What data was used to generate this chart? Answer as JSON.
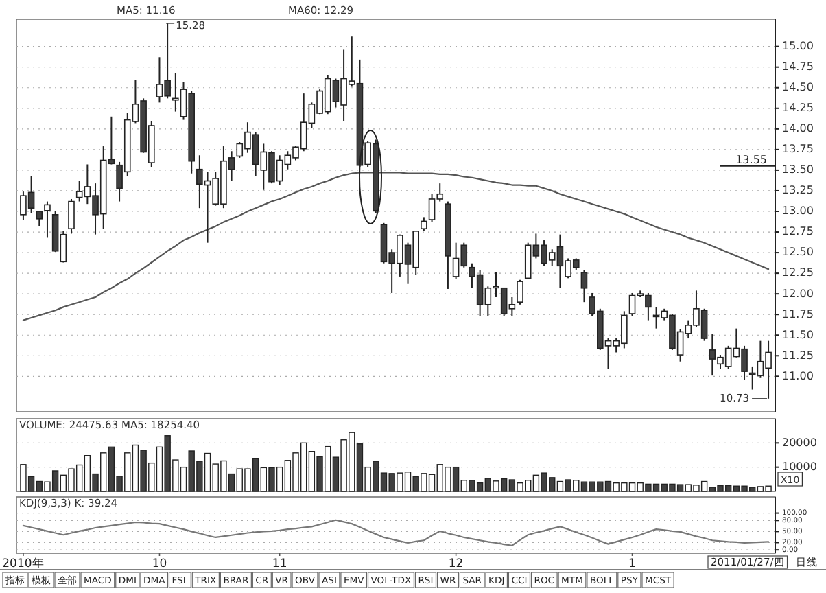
{
  "chart_data": [
    {
      "type": "candlestick",
      "categories": [
        null,
        null,
        null,
        null,
        null,
        null,
        null,
        null,
        null,
        null,
        null,
        null,
        null,
        null,
        null,
        null,
        null,
        null,
        null,
        null,
        null,
        null,
        null,
        null,
        null,
        null,
        null,
        null,
        null,
        null,
        null,
        null,
        null,
        null,
        null,
        null,
        null,
        null,
        null,
        null,
        null,
        null,
        null,
        null,
        null,
        null,
        null,
        null,
        null,
        null,
        null,
        null,
        null,
        null,
        null,
        null,
        null,
        null,
        null,
        null,
        null,
        null,
        null,
        null,
        null,
        null,
        null,
        null,
        null,
        null,
        null,
        null,
        null,
        null,
        null,
        null,
        null,
        null,
        null,
        null,
        null,
        null,
        null,
        null,
        null,
        null,
        null,
        null,
        null,
        null,
        null,
        null,
        null,
        null
      ],
      "ohlc": [
        [
          12.96,
          13.24,
          12.9,
          13.19
        ],
        [
          13.23,
          13.43,
          12.98,
          13.04
        ],
        [
          13.0,
          13.0,
          12.82,
          12.91
        ],
        [
          13.01,
          13.12,
          12.68,
          13.08
        ],
        [
          12.96,
          13.0,
          12.51,
          12.52
        ],
        [
          12.39,
          12.76,
          12.38,
          12.72
        ],
        [
          12.79,
          13.15,
          12.73,
          13.12
        ],
        [
          13.17,
          13.37,
          13.12,
          13.24
        ],
        [
          13.18,
          13.57,
          13.09,
          13.3
        ],
        [
          13.19,
          13.34,
          12.72,
          12.96
        ],
        [
          12.97,
          13.79,
          12.79,
          13.62
        ],
        [
          13.63,
          14.15,
          13.57,
          13.58
        ],
        [
          13.56,
          13.6,
          13.12,
          13.28
        ],
        [
          13.48,
          14.19,
          13.43,
          14.11
        ],
        [
          14.09,
          14.59,
          14.07,
          14.3
        ],
        [
          14.34,
          14.37,
          13.71,
          13.72
        ],
        [
          13.59,
          14.09,
          13.54,
          14.04
        ],
        [
          14.39,
          14.87,
          14.32,
          14.54
        ],
        [
          14.59,
          15.28,
          14.37,
          14.4
        ],
        [
          14.35,
          14.68,
          14.21,
          14.37
        ],
        [
          14.15,
          14.57,
          14.11,
          14.48
        ],
        [
          14.43,
          14.46,
          13.46,
          13.61
        ],
        [
          13.51,
          13.68,
          13.04,
          13.33
        ],
        [
          13.32,
          13.48,
          12.62,
          13.37
        ],
        [
          13.09,
          13.48,
          13.07,
          13.4
        ],
        [
          13.09,
          13.79,
          13.04,
          13.61
        ],
        [
          13.65,
          13.73,
          13.37,
          13.51
        ],
        [
          13.67,
          13.84,
          13.65,
          13.82
        ],
        [
          13.76,
          14.08,
          13.71,
          13.96
        ],
        [
          13.93,
          13.96,
          13.43,
          13.57
        ],
        [
          13.5,
          13.82,
          13.26,
          13.72
        ],
        [
          13.71,
          13.73,
          13.34,
          13.36
        ],
        [
          13.37,
          13.68,
          13.32,
          13.62
        ],
        [
          13.57,
          13.73,
          13.51,
          13.68
        ],
        [
          13.65,
          13.79,
          13.62,
          13.78
        ],
        [
          13.76,
          14.43,
          13.73,
          14.08
        ],
        [
          14.07,
          14.32,
          14.01,
          14.3
        ],
        [
          14.19,
          14.48,
          14.18,
          14.46
        ],
        [
          14.21,
          14.65,
          14.18,
          14.61
        ],
        [
          14.59,
          14.61,
          14.26,
          14.33
        ],
        [
          14.29,
          14.96,
          14.09,
          14.61
        ],
        [
          14.54,
          15.12,
          14.51,
          14.58
        ],
        [
          14.55,
          14.84,
          13.54,
          13.56
        ],
        [
          13.57,
          13.85,
          13.54,
          13.83
        ],
        [
          13.82,
          13.87,
          12.98,
          13.01
        ],
        [
          12.84,
          12.86,
          12.37,
          12.39
        ],
        [
          12.5,
          12.54,
          12.01,
          12.37
        ],
        [
          12.37,
          12.72,
          12.21,
          12.71
        ],
        [
          12.59,
          12.62,
          12.12,
          12.36
        ],
        [
          12.32,
          12.76,
          12.23,
          12.76
        ],
        [
          12.79,
          12.93,
          12.76,
          12.88
        ],
        [
          12.9,
          13.21,
          12.87,
          13.15
        ],
        [
          13.15,
          13.34,
          13.12,
          13.21
        ],
        [
          13.09,
          13.12,
          12.06,
          12.46
        ],
        [
          12.21,
          12.62,
          12.18,
          12.43
        ],
        [
          12.59,
          12.62,
          12.32,
          12.34
        ],
        [
          12.32,
          12.37,
          12.07,
          12.21
        ],
        [
          12.23,
          12.29,
          11.73,
          11.87
        ],
        [
          11.87,
          12.09,
          11.73,
          12.07
        ],
        [
          12.08,
          12.26,
          11.96,
          12.09
        ],
        [
          12.07,
          12.07,
          11.73,
          11.76
        ],
        [
          11.82,
          11.96,
          11.73,
          11.87
        ],
        [
          11.9,
          12.17,
          11.87,
          12.15
        ],
        [
          12.19,
          12.62,
          12.18,
          12.59
        ],
        [
          12.59,
          12.73,
          12.43,
          12.46
        ],
        [
          12.59,
          12.65,
          12.34,
          12.37
        ],
        [
          12.41,
          12.54,
          12.34,
          12.5
        ],
        [
          12.57,
          12.72,
          12.07,
          12.34
        ],
        [
          12.21,
          12.43,
          12.19,
          12.4
        ],
        [
          12.41,
          12.43,
          12.29,
          12.32
        ],
        [
          12.26,
          12.29,
          11.9,
          12.07
        ],
        [
          11.96,
          12.01,
          11.73,
          11.76
        ],
        [
          11.79,
          11.82,
          11.32,
          11.34
        ],
        [
          11.37,
          11.46,
          11.09,
          11.43
        ],
        [
          11.37,
          11.46,
          11.29,
          11.43
        ],
        [
          11.4,
          11.79,
          11.34,
          11.74
        ],
        [
          11.76,
          12.01,
          11.73,
          11.98
        ],
        [
          11.98,
          12.04,
          11.96,
          12.0
        ],
        [
          11.98,
          12.01,
          11.68,
          11.84
        ],
        [
          11.74,
          11.84,
          11.58,
          11.73
        ],
        [
          11.71,
          11.82,
          11.68,
          11.79
        ],
        [
          11.74,
          11.76,
          11.32,
          11.34
        ],
        [
          11.26,
          11.57,
          11.18,
          11.54
        ],
        [
          11.52,
          11.68,
          11.46,
          11.62
        ],
        [
          11.62,
          12.04,
          11.6,
          11.82
        ],
        [
          11.8,
          11.82,
          11.43,
          11.46
        ],
        [
          11.32,
          11.51,
          11.01,
          11.21
        ],
        [
          11.15,
          11.26,
          11.09,
          11.23
        ],
        [
          11.12,
          11.37,
          11.09,
          11.34
        ],
        [
          11.24,
          11.58,
          11.23,
          11.34
        ],
        [
          11.33,
          11.37,
          10.96,
          11.06
        ],
        [
          11.04,
          11.12,
          10.84,
          11.02
        ],
        [
          11.01,
          11.43,
          10.98,
          11.18
        ],
        [
          11.1,
          11.43,
          10.73,
          11.29
        ]
      ],
      "series": [
        {
          "type": "line",
          "color": "#555555",
          "values": [
            11.68,
            11.71,
            11.74,
            11.77,
            11.8,
            11.84,
            11.87,
            11.9,
            11.93,
            11.96,
            12.02,
            12.07,
            12.13,
            12.18,
            12.25,
            12.31,
            12.38,
            12.45,
            12.52,
            12.58,
            12.65,
            12.69,
            12.74,
            12.78,
            12.82,
            12.87,
            12.91,
            12.95,
            13.0,
            13.04,
            13.08,
            13.12,
            13.15,
            13.19,
            13.23,
            13.27,
            13.3,
            13.34,
            13.37,
            13.41,
            13.44,
            13.46,
            13.47,
            13.47,
            13.47,
            13.47,
            13.47,
            13.47,
            13.46,
            13.46,
            13.46,
            13.46,
            13.45,
            13.45,
            13.44,
            13.42,
            13.41,
            13.39,
            13.37,
            13.35,
            13.34,
            13.32,
            13.32,
            13.31,
            13.31,
            13.28,
            13.25,
            13.21,
            13.18,
            13.15,
            13.12,
            13.09,
            13.06,
            13.03,
            13.0,
            12.97,
            12.93,
            12.89,
            12.85,
            12.81,
            12.78,
            12.75,
            12.72,
            12.68,
            12.65,
            12.62,
            12.58,
            12.54,
            12.5,
            12.46,
            12.42,
            12.38,
            12.34,
            12.3
          ]
        }
      ],
      "ylim": [
        10.57,
        15.33
      ],
      "yticks": [
        {
          "value": 11,
          "label": "11.00"
        },
        {
          "value": 11.25,
          "label": "11.25"
        },
        {
          "value": 11.5,
          "label": "11.50"
        },
        {
          "value": 11.75,
          "label": "11.75"
        },
        {
          "value": 12,
          "label": "12.00"
        },
        {
          "value": 12.25,
          "label": "12.25"
        },
        {
          "value": 12.5,
          "label": "12.50"
        },
        {
          "value": 12.75,
          "label": "12.75"
        },
        {
          "value": 13,
          "label": "13.00"
        },
        {
          "value": 13.25,
          "label": "13.25"
        },
        {
          "value": 13.5,
          "label": "13.50"
        },
        {
          "value": 13.75,
          "label": "13.75"
        },
        {
          "value": 14,
          "label": "14.00"
        },
        {
          "value": 14.25,
          "label": "14.25"
        },
        {
          "value": 14.5,
          "label": "14.50"
        },
        {
          "value": 14.75,
          "label": "14.75"
        },
        {
          "value": 15,
          "label": "15.00"
        }
      ],
      "grid": "y",
      "tick_labels": "y",
      "ref_lines": [
        {
          "axis": "y",
          "value": 13.55,
          "label": "13.55"
        }
      ],
      "annotations": [
        "MA5: 11.16",
        "MA60: 12.29",
        "15.28",
        "10.73"
      ]
    },
    {
      "type": "bar",
      "title": "VOLUME: 24475.63  MA5: 18254.40",
      "categories": [
        null,
        null,
        null,
        null,
        null,
        null,
        null,
        null,
        null,
        null,
        null,
        null,
        null,
        null,
        null,
        null,
        null,
        null,
        null,
        null,
        null,
        null,
        null,
        null,
        null,
        null,
        null,
        null,
        null,
        null,
        null,
        null,
        null,
        null,
        null,
        null,
        null,
        null,
        null,
        null,
        null,
        null,
        null,
        null,
        null,
        null,
        null,
        null,
        null,
        null,
        null,
        null,
        null,
        null,
        null,
        null,
        null,
        null,
        null,
        null,
        null,
        null,
        null,
        null,
        null,
        null,
        null,
        null,
        null,
        null,
        null,
        null,
        null,
        null,
        null,
        null,
        null,
        null,
        null,
        null,
        null,
        null,
        null,
        null,
        null,
        null,
        null,
        null,
        null,
        null,
        null,
        null,
        null,
        null
      ],
      "values": [
        11100,
        6100,
        4100,
        3900,
        8500,
        6700,
        9300,
        10900,
        14800,
        7200,
        15900,
        18300,
        6300,
        15900,
        19100,
        17000,
        11700,
        18300,
        23000,
        13000,
        10000,
        16700,
        12400,
        15700,
        11300,
        12600,
        7200,
        9300,
        9300,
        13500,
        9800,
        9800,
        10000,
        12800,
        15900,
        20000,
        16500,
        14300,
        18500,
        14100,
        21300,
        24300,
        19600,
        10000,
        12400,
        7600,
        7400,
        7600,
        8000,
        6100,
        7400,
        7000,
        11100,
        10000,
        10000,
        4600,
        4600,
        3500,
        5400,
        4300,
        5200,
        4800,
        3500,
        4600,
        6700,
        7600,
        5700,
        4100,
        4800,
        4600,
        3900,
        3900,
        3900,
        4100,
        3500,
        3500,
        3500,
        3500,
        3000,
        3000,
        3000,
        3000,
        2800,
        2800,
        2600,
        4100,
        1700,
        2400,
        2400,
        2200,
        2200,
        1700,
        2000,
        2200
      ],
      "colors": [
        "#ffffff",
        "#404040",
        "#404040",
        "#ffffff",
        "#404040",
        "#ffffff",
        "#ffffff",
        "#ffffff",
        "#ffffff",
        "#404040",
        "#ffffff",
        "#404040",
        "#404040",
        "#ffffff",
        "#ffffff",
        "#404040",
        "#ffffff",
        "#ffffff",
        "#404040",
        "#ffffff",
        "#ffffff",
        "#404040",
        "#404040",
        "#ffffff",
        "#ffffff",
        "#ffffff",
        "#404040",
        "#ffffff",
        "#ffffff",
        "#404040",
        "#ffffff",
        "#404040",
        "#ffffff",
        "#ffffff",
        "#ffffff",
        "#ffffff",
        "#ffffff",
        "#404040",
        "#ffffff",
        "#404040",
        "#ffffff",
        "#ffffff",
        "#404040",
        "#ffffff",
        "#404040",
        "#404040",
        "#404040",
        "#ffffff",
        "#ffffff",
        "#404040",
        "#ffffff",
        "#ffffff",
        "#ffffff",
        "#ffffff",
        "#404040",
        "#ffffff",
        "#404040",
        "#404040",
        "#404040",
        "#ffffff",
        "#404040",
        "#404040",
        "#ffffff",
        "#ffffff",
        "#ffffff",
        "#404040",
        "#404040",
        "#ffffff",
        "#404040",
        "#ffffff",
        "#404040",
        "#404040",
        "#404040",
        "#404040",
        "#ffffff",
        "#ffffff",
        "#ffffff",
        "#ffffff",
        "#404040",
        "#404040",
        "#404040",
        "#404040",
        "#404040",
        "#ffffff",
        "#ffffff",
        "#ffffff",
        "#404040",
        "#404040",
        "#404040",
        "#404040",
        "#404040",
        "#404040",
        "#ffffff",
        "#ffffff"
      ],
      "ylim": [
        0,
        30000
      ],
      "yticks": [
        10000,
        20000
      ],
      "grid": "y",
      "tick_labels": "y",
      "annotations": [
        "X10"
      ]
    },
    {
      "type": "line",
      "title": "KDJ(9,3,3) K: 39.24",
      "categories": [
        "2010年",
        null,
        null,
        null,
        null,
        null,
        null,
        null,
        null,
        null,
        null,
        null,
        null,
        null,
        null,
        null,
        null,
        "10",
        null,
        null,
        null,
        null,
        null,
        null,
        null,
        null,
        null,
        null,
        null,
        null,
        null,
        null,
        "11",
        null,
        null,
        null,
        null,
        null,
        null,
        null,
        null,
        null,
        null,
        null,
        null,
        null,
        null,
        null,
        null,
        null,
        null,
        null,
        null,
        null,
        "12",
        null,
        null,
        null,
        null,
        null,
        null,
        null,
        null,
        null,
        null,
        null,
        null,
        null,
        null,
        null,
        null,
        null,
        null,
        null,
        null,
        null,
        "1",
        null,
        null,
        null,
        null,
        null,
        null,
        null,
        null,
        null,
        null,
        null,
        null,
        null,
        null,
        null,
        null,
        null
      ],
      "series": [
        {
          "color": "#777777",
          "values": [
            66,
            61,
            56,
            51,
            46,
            41,
            46,
            51,
            55,
            60,
            63,
            66,
            69,
            72,
            75,
            74,
            72,
            71,
            66,
            61,
            56,
            50,
            45,
            39,
            34,
            37,
            40,
            43,
            46,
            48,
            50,
            51,
            53,
            56,
            58,
            61,
            63,
            69,
            75,
            81,
            76,
            71,
            62,
            52,
            43,
            34,
            29,
            24,
            19,
            23,
            26,
            39,
            51,
            45,
            40,
            34,
            30,
            26,
            22,
            19,
            15,
            12,
            27,
            41,
            47,
            52,
            58,
            63,
            56,
            48,
            41,
            33,
            24,
            16,
            22,
            28,
            34,
            41,
            49,
            56,
            54,
            51,
            49,
            43,
            37,
            32,
            26,
            24,
            22,
            21,
            19,
            20,
            21,
            22
          ]
        }
      ],
      "ylim": [
        -9,
        144
      ],
      "yticks": [
        {
          "value": 0,
          "label": "0.00"
        },
        {
          "value": 20,
          "label": "20.00"
        },
        {
          "value": 50,
          "label": "50.00"
        },
        {
          "value": 80,
          "label": "80.00"
        },
        {
          "value": 100,
          "label": "100.00"
        }
      ],
      "grid": "y",
      "annotations": [
        "2011/01/27/四",
        "日线",
        "指标",
        "模板",
        "全部",
        "MACD",
        "DMI",
        "DMA",
        "FSL",
        "TRIX",
        "BRAR",
        "CR",
        "VR",
        "OBV",
        "ASI",
        "EMV",
        "VOL-TDX",
        "RSI",
        "WR",
        "SAR",
        "KDJ",
        "CCI",
        "ROC",
        "MTM",
        "BOLL",
        "PSY",
        "MCST"
      ]
    }
  ]
}
